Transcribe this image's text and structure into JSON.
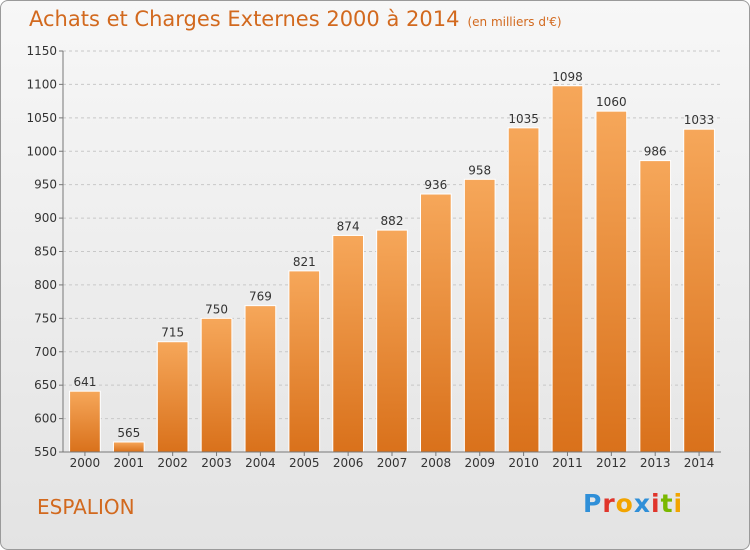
{
  "chart_data": {
    "type": "bar",
    "title": "Achats et Charges Externes 2000 à 2014",
    "subtitle": "(en milliers d'€)",
    "categories": [
      "2000",
      "2001",
      "2002",
      "2003",
      "2004",
      "2005",
      "2006",
      "2007",
      "2008",
      "2009",
      "2010",
      "2011",
      "2012",
      "2013",
      "2014"
    ],
    "values": [
      641,
      565,
      715,
      750,
      769,
      821,
      874,
      882,
      936,
      958,
      1035,
      1098,
      1060,
      986,
      1033
    ],
    "ylim": [
      550,
      1150
    ],
    "yticks": [
      550,
      600,
      650,
      700,
      750,
      800,
      850,
      900,
      950,
      1000,
      1050,
      1100,
      1150
    ],
    "grid": true,
    "bar_color": "#f0973e"
  },
  "footer": {
    "commune": "ESPALION",
    "logo_letters": [
      "P",
      "r",
      "o",
      "x",
      "i",
      "t",
      "i"
    ],
    "logo_colors": [
      "#2f8fd8",
      "#e0352b",
      "#f2a400",
      "#2f8fd8",
      "#e0352b",
      "#7ab800",
      "#f2a400"
    ]
  }
}
